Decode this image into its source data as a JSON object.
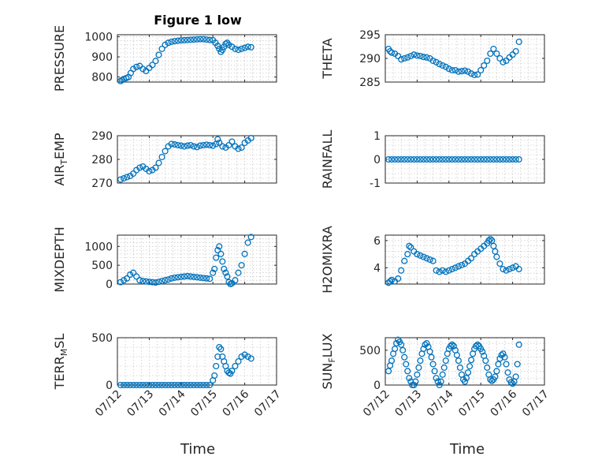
{
  "figure": {
    "title": "Figure 1 low"
  },
  "colors": {
    "series": "#0072BD",
    "axis": "#262626",
    "grid": "#b8b8b8"
  },
  "x_axis_label": "Time",
  "x_ticks": [
    "07/12",
    "07/13",
    "07/14",
    "07/15",
    "07/16",
    "07/17"
  ],
  "chart_data": [
    {
      "type": "scatter",
      "ylabel": "PRESSURE",
      "ylim": [
        775,
        1010
      ],
      "yticks": [
        800,
        900,
        1000
      ],
      "xlim": [
        0,
        5
      ],
      "grid": true,
      "x": [
        0.1,
        0.15,
        0.2,
        0.28,
        0.35,
        0.42,
        0.5,
        0.6,
        0.7,
        0.8,
        0.9,
        1.0,
        1.1,
        1.2,
        1.3,
        1.4,
        1.5,
        1.6,
        1.7,
        1.8,
        1.9,
        2.0,
        2.1,
        2.2,
        2.3,
        2.4,
        2.5,
        2.6,
        2.7,
        2.8,
        2.9,
        3.0,
        3.08,
        3.15,
        3.2,
        3.25,
        3.3,
        3.35,
        3.4,
        3.45,
        3.5,
        3.6,
        3.7,
        3.8,
        3.9,
        4.0,
        4.1,
        4.2
      ],
      "y": [
        780,
        785,
        790,
        795,
        800,
        820,
        840,
        850,
        855,
        840,
        830,
        845,
        860,
        880,
        910,
        940,
        960,
        970,
        975,
        978,
        980,
        982,
        983,
        984,
        985,
        986,
        987,
        988,
        988,
        986,
        984,
        983,
        970,
        955,
        940,
        925,
        935,
        950,
        965,
        970,
        960,
        950,
        940,
        935,
        940,
        945,
        950,
        948
      ]
    },
    {
      "type": "scatter",
      "ylabel": "THETA",
      "ylim": [
        285,
        295
      ],
      "yticks": [
        285,
        290,
        295
      ],
      "xlim": [
        0,
        5
      ],
      "grid": true,
      "x": [
        0.1,
        0.15,
        0.2,
        0.3,
        0.4,
        0.5,
        0.6,
        0.7,
        0.8,
        0.9,
        1.0,
        1.1,
        1.2,
        1.3,
        1.4,
        1.5,
        1.6,
        1.7,
        1.8,
        1.9,
        2.0,
        2.1,
        2.2,
        2.3,
        2.4,
        2.5,
        2.6,
        2.7,
        2.8,
        2.9,
        3.0,
        3.1,
        3.2,
        3.3,
        3.4,
        3.5,
        3.6,
        3.7,
        3.8,
        3.9,
        4.0,
        4.1,
        4.2
      ],
      "y": [
        292.0,
        291.5,
        291.2,
        291.0,
        290.5,
        289.8,
        290.0,
        290.2,
        290.5,
        290.8,
        290.6,
        290.5,
        290.3,
        290.2,
        290.0,
        289.5,
        289.2,
        288.8,
        288.5,
        288.2,
        287.8,
        287.5,
        287.5,
        287.2,
        287.3,
        287.4,
        287.2,
        286.8,
        286.5,
        286.6,
        287.5,
        288.5,
        289.5,
        291.0,
        292.0,
        291.0,
        290.0,
        289.2,
        289.5,
        290.2,
        290.8,
        291.5,
        293.5
      ]
    },
    {
      "type": "scatter",
      "ylabel": "AIR_TEMP",
      "ylim": [
        270,
        290
      ],
      "yticks": [
        270,
        280,
        290
      ],
      "xlim": [
        0,
        5
      ],
      "grid": true,
      "x": [
        0.1,
        0.2,
        0.3,
        0.4,
        0.5,
        0.6,
        0.7,
        0.8,
        0.9,
        1.0,
        1.1,
        1.2,
        1.3,
        1.4,
        1.5,
        1.6,
        1.7,
        1.8,
        1.9,
        2.0,
        2.1,
        2.2,
        2.3,
        2.4,
        2.5,
        2.6,
        2.7,
        2.8,
        2.9,
        3.0,
        3.1,
        3.15,
        3.2,
        3.3,
        3.4,
        3.5,
        3.6,
        3.7,
        3.8,
        3.9,
        4.0,
        4.1,
        4.2
      ],
      "y": [
        271.5,
        272.0,
        272.5,
        273.0,
        274.0,
        275.5,
        276.5,
        277.0,
        276.0,
        275.0,
        275.5,
        276.5,
        278.5,
        281.0,
        283.5,
        285.5,
        286.5,
        286.3,
        286.0,
        285.8,
        285.5,
        285.8,
        286.0,
        285.5,
        285.2,
        285.8,
        286.0,
        286.2,
        286.0,
        285.8,
        286.5,
        288.5,
        287.0,
        285.5,
        285.0,
        286.0,
        287.5,
        285.5,
        284.5,
        285.0,
        287.0,
        288.0,
        289.0
      ]
    },
    {
      "type": "scatter",
      "ylabel": "RAINFALL",
      "ylim": [
        -1,
        1
      ],
      "yticks": [
        -1,
        0,
        1
      ],
      "xlim": [
        0,
        5
      ],
      "grid": true,
      "x": [
        0.1,
        0.2,
        0.3,
        0.4,
        0.5,
        0.6,
        0.7,
        0.8,
        0.9,
        1.0,
        1.1,
        1.2,
        1.3,
        1.4,
        1.5,
        1.6,
        1.7,
        1.8,
        1.9,
        2.0,
        2.1,
        2.2,
        2.3,
        2.4,
        2.5,
        2.6,
        2.7,
        2.8,
        2.9,
        3.0,
        3.1,
        3.2,
        3.3,
        3.4,
        3.5,
        3.6,
        3.7,
        3.8,
        3.9,
        4.0,
        4.1,
        4.2
      ],
      "y": [
        0,
        0,
        0,
        0,
        0,
        0,
        0,
        0,
        0,
        0,
        0,
        0,
        0,
        0,
        0,
        0,
        0,
        0,
        0,
        0,
        0,
        0,
        0,
        0,
        0,
        0,
        0,
        0,
        0,
        0,
        0,
        0,
        0,
        0,
        0,
        0,
        0,
        0,
        0,
        0,
        0,
        0
      ]
    },
    {
      "type": "scatter",
      "ylabel": "MIXDEPTH",
      "ylim": [
        0,
        1300
      ],
      "yticks": [
        0,
        500,
        1000
      ],
      "xlim": [
        0,
        5
      ],
      "grid": true,
      "x": [
        0.1,
        0.2,
        0.3,
        0.4,
        0.5,
        0.6,
        0.7,
        0.8,
        0.9,
        1.0,
        1.1,
        1.2,
        1.3,
        1.4,
        1.5,
        1.6,
        1.7,
        1.8,
        1.9,
        2.0,
        2.1,
        2.2,
        2.3,
        2.4,
        2.5,
        2.6,
        2.7,
        2.8,
        2.9,
        3.0,
        3.05,
        3.1,
        3.15,
        3.2,
        3.25,
        3.3,
        3.35,
        3.4,
        3.45,
        3.5,
        3.55,
        3.6,
        3.7,
        3.8,
        3.9,
        4.0,
        4.1,
        4.2
      ],
      "y": [
        50,
        100,
        150,
        250,
        300,
        200,
        100,
        80,
        70,
        60,
        50,
        40,
        60,
        80,
        100,
        120,
        150,
        170,
        180,
        190,
        200,
        210,
        200,
        190,
        180,
        170,
        160,
        150,
        140,
        300,
        400,
        700,
        900,
        1000,
        800,
        600,
        400,
        300,
        200,
        50,
        0,
        20,
        100,
        300,
        500,
        800,
        1100,
        1250
      ]
    },
    {
      "type": "scatter",
      "ylabel": "H2OMIXRA",
      "ylim": [
        2.8,
        6.4
      ],
      "yticks": [
        4,
        6
      ],
      "xlim": [
        0,
        5
      ],
      "grid": true,
      "x": [
        0.1,
        0.15,
        0.2,
        0.3,
        0.4,
        0.5,
        0.6,
        0.7,
        0.75,
        0.8,
        0.9,
        1.0,
        1.1,
        1.2,
        1.3,
        1.4,
        1.5,
        1.6,
        1.7,
        1.8,
        1.9,
        2.0,
        2.1,
        2.2,
        2.3,
        2.4,
        2.5,
        2.6,
        2.7,
        2.8,
        2.9,
        3.0,
        3.1,
        3.2,
        3.25,
        3.3,
        3.35,
        3.4,
        3.45,
        3.5,
        3.6,
        3.7,
        3.8,
        3.9,
        4.0,
        4.1,
        4.2
      ],
      "y": [
        2.9,
        3.0,
        3.1,
        3.0,
        3.2,
        3.8,
        4.5,
        5.0,
        5.6,
        5.5,
        5.2,
        5.0,
        4.9,
        4.8,
        4.7,
        4.6,
        4.5,
        3.8,
        3.7,
        3.8,
        3.7,
        3.8,
        3.9,
        4.0,
        4.1,
        4.2,
        4.3,
        4.5,
        4.7,
        5.0,
        5.2,
        5.4,
        5.6,
        5.8,
        6.0,
        6.1,
        6.0,
        5.6,
        5.2,
        4.8,
        4.3,
        3.9,
        3.8,
        3.9,
        4.0,
        4.1,
        3.9
      ]
    },
    {
      "type": "scatter",
      "ylabel": "TERR_MSL",
      "ylim": [
        0,
        500
      ],
      "yticks": [
        0,
        500
      ],
      "xlim": [
        0,
        5
      ],
      "grid": true,
      "x": [
        0.1,
        0.2,
        0.3,
        0.4,
        0.5,
        0.6,
        0.7,
        0.8,
        0.9,
        1.0,
        1.1,
        1.2,
        1.3,
        1.4,
        1.5,
        1.6,
        1.7,
        1.8,
        1.9,
        2.0,
        2.1,
        2.2,
        2.3,
        2.4,
        2.5,
        2.6,
        2.7,
        2.8,
        2.9,
        3.0,
        3.05,
        3.1,
        3.15,
        3.2,
        3.25,
        3.3,
        3.35,
        3.4,
        3.45,
        3.5,
        3.55,
        3.6,
        3.7,
        3.8,
        3.9,
        4.0,
        4.1,
        4.2
      ],
      "y": [
        0,
        0,
        0,
        0,
        0,
        0,
        0,
        0,
        0,
        0,
        0,
        0,
        0,
        0,
        0,
        0,
        0,
        0,
        0,
        0,
        0,
        0,
        0,
        0,
        0,
        0,
        0,
        0,
        0,
        50,
        100,
        200,
        300,
        400,
        380,
        300,
        250,
        200,
        150,
        130,
        120,
        150,
        200,
        250,
        300,
        320,
        300,
        280
      ]
    },
    {
      "type": "scatter",
      "ylabel": "SUN_FLUX",
      "ylim": [
        0,
        680
      ],
      "yticks": [
        0,
        500
      ],
      "xlim": [
        0,
        5
      ],
      "grid": true,
      "x": [
        0.1,
        0.15,
        0.2,
        0.25,
        0.3,
        0.35,
        0.4,
        0.45,
        0.5,
        0.55,
        0.6,
        0.65,
        0.7,
        0.75,
        0.8,
        0.85,
        0.9,
        0.95,
        1.0,
        1.05,
        1.1,
        1.15,
        1.2,
        1.25,
        1.3,
        1.35,
        1.4,
        1.45,
        1.5,
        1.55,
        1.6,
        1.65,
        1.7,
        1.75,
        1.8,
        1.85,
        1.9,
        1.95,
        2.0,
        2.05,
        2.1,
        2.15,
        2.2,
        2.25,
        2.3,
        2.35,
        2.4,
        2.45,
        2.5,
        2.55,
        2.6,
        2.65,
        2.7,
        2.75,
        2.8,
        2.85,
        2.9,
        2.95,
        3.0,
        3.05,
        3.1,
        3.15,
        3.2,
        3.25,
        3.3,
        3.35,
        3.4,
        3.45,
        3.5,
        3.55,
        3.6,
        3.65,
        3.7,
        3.75,
        3.8,
        3.85,
        3.9,
        3.95,
        4.0,
        4.05,
        4.1,
        4.15,
        4.2
      ],
      "y": [
        200,
        280,
        350,
        450,
        520,
        600,
        650,
        620,
        580,
        500,
        400,
        300,
        200,
        100,
        50,
        0,
        0,
        50,
        150,
        250,
        350,
        450,
        520,
        580,
        600,
        550,
        480,
        400,
        300,
        200,
        100,
        50,
        0,
        50,
        150,
        250,
        350,
        450,
        520,
        560,
        580,
        560,
        500,
        430,
        350,
        250,
        150,
        80,
        50,
        100,
        180,
        270,
        360,
        450,
        520,
        560,
        580,
        560,
        520,
        480,
        420,
        350,
        250,
        150,
        80,
        60,
        80,
        120,
        200,
        300,
        380,
        430,
        450,
        400,
        300,
        180,
        80,
        40,
        20,
        50,
        120,
        300,
        580
      ]
    }
  ]
}
